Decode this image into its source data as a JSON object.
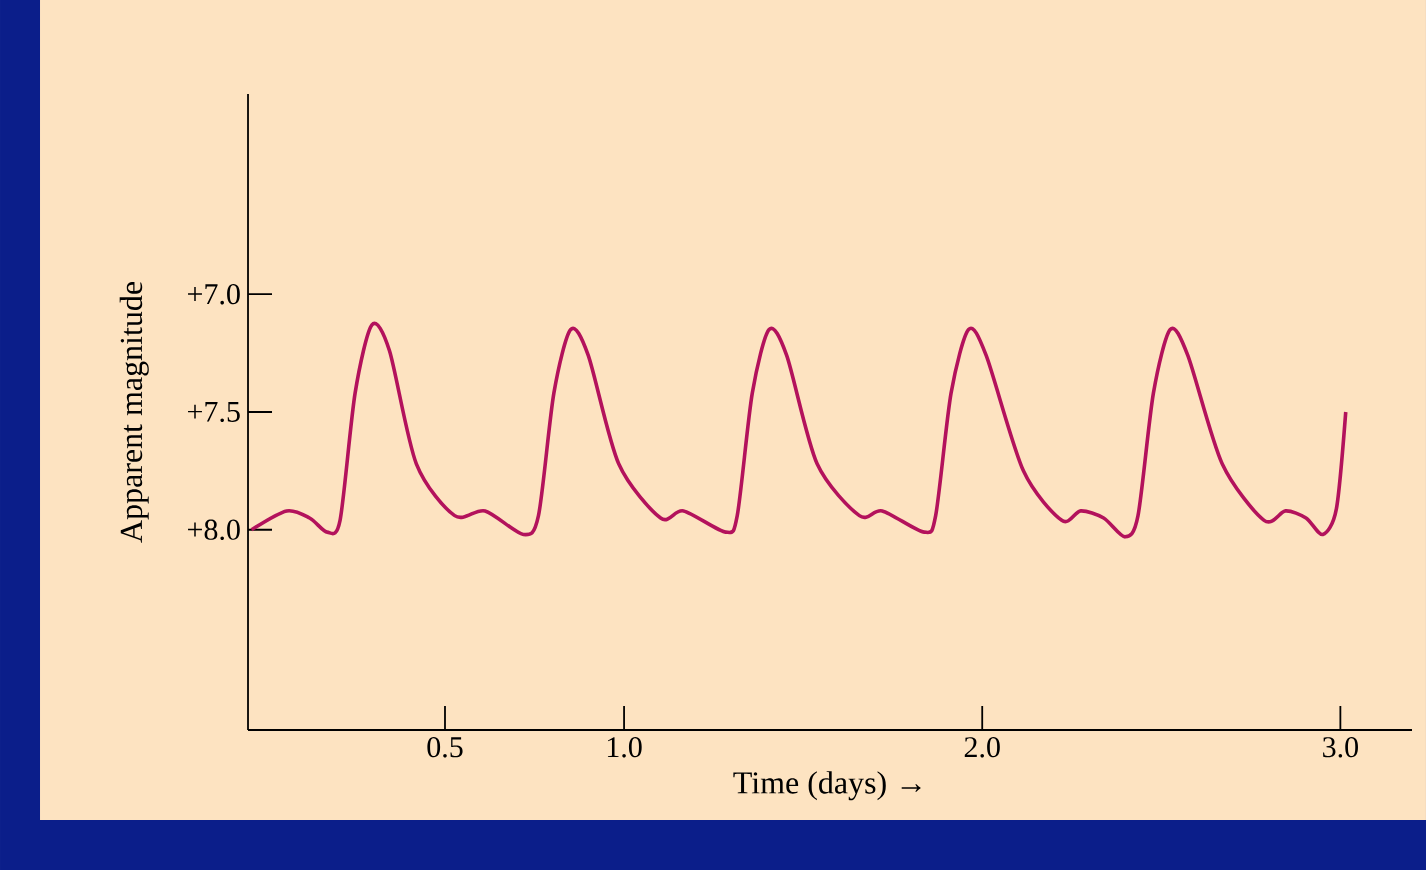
{
  "chart_data": {
    "type": "line",
    "xlabel": "Time (days) →",
    "ylabel": "Apparent magnitude",
    "xlim": [
      -0.05,
      3.2
    ],
    "ylim": [
      8.85,
      6.15
    ],
    "xticks": [
      0.5,
      {
        "value": 1,
        "label": "1.0"
      },
      {
        "value": 2,
        "label": "2.0"
      },
      {
        "value": 3,
        "label": "3.0"
      }
    ],
    "yticks": [
      {
        "value": 7,
        "label": "+7.0"
      },
      {
        "value": 7.5,
        "label": "+7.5"
      },
      {
        "value": 8,
        "label": "+8.0"
      }
    ],
    "grid": false,
    "marker": "none",
    "line_style": "solid",
    "series": [
      {
        "color": "#b3125c",
        "x": [
          -0.04,
          0.058,
          0.122,
          0.171,
          0.207,
          0.249,
          0.296,
          0.345,
          0.42,
          0.527,
          0.612,
          0.719,
          0.761,
          0.804,
          0.851,
          0.9,
          0.985,
          1.102,
          1.166,
          1.284,
          1.316,
          1.358,
          1.405,
          1.454,
          1.539,
          1.657,
          1.721,
          1.838,
          1.87,
          1.913,
          1.962,
          2.011,
          2.115,
          2.222,
          2.275,
          2.339,
          2.399,
          2.435,
          2.478,
          2.525,
          2.574,
          2.67,
          2.787,
          2.847,
          2.904,
          2.951,
          2.989,
          3.015
        ],
        "values": [
          8.0,
          7.92,
          7.95,
          8.01,
          7.96,
          7.42,
          7.13,
          7.24,
          7.72,
          7.94,
          7.92,
          8.02,
          7.94,
          7.42,
          7.15,
          7.26,
          7.72,
          7.95,
          7.92,
          8.01,
          7.94,
          7.42,
          7.15,
          7.26,
          7.72,
          7.94,
          7.92,
          8.01,
          7.94,
          7.42,
          7.15,
          7.26,
          7.75,
          7.96,
          7.92,
          7.95,
          8.03,
          7.94,
          7.42,
          7.15,
          7.26,
          7.72,
          7.96,
          7.92,
          7.95,
          8.02,
          7.91,
          7.5
        ]
      }
    ]
  }
}
